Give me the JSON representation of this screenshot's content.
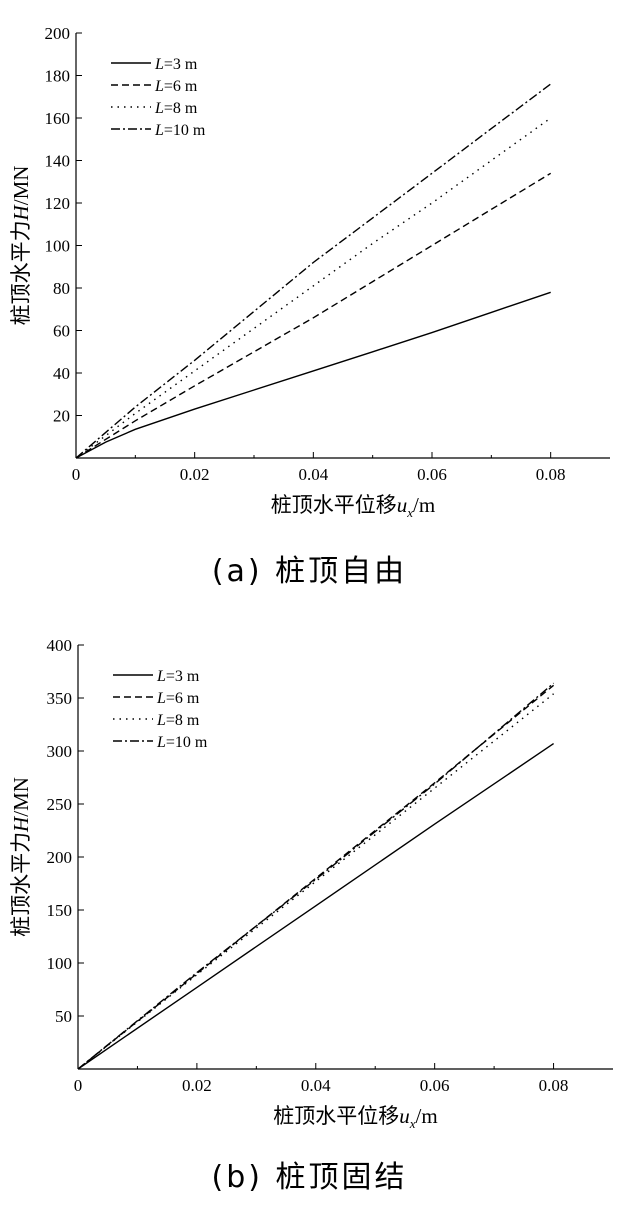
{
  "chart_data": [
    {
      "type": "line",
      "caption": "(a) 桩顶自由",
      "xlabel_main": "桩顶水平位移",
      "xlabel_var": "u",
      "xlabel_sub": "x",
      "xlabel_unit": "/m",
      "ylabel_main": "桩顶水平力",
      "ylabel_var": "H",
      "ylabel_unit": "/MN",
      "xlim": [
        0,
        0.09
      ],
      "ylim": [
        0,
        200
      ],
      "xticks": [
        0,
        0.02,
        0.04,
        0.06,
        0.08
      ],
      "xtick_labels": [
        "0",
        "0.02",
        "0.04",
        "0.06",
        "0.08"
      ],
      "yticks": [
        0,
        20,
        40,
        60,
        80,
        100,
        120,
        140,
        160,
        180,
        200
      ],
      "ytick_labels": [
        "",
        "20",
        "40",
        "60",
        "80",
        "100",
        "120",
        "140",
        "160",
        "180",
        "200"
      ],
      "x_origin_label": "0",
      "legend_position": "top-left",
      "series": [
        {
          "name_var": "L",
          "name_rest": "=3 m",
          "style": "solid",
          "x": [
            0,
            0.005,
            0.01,
            0.02,
            0.03,
            0.04,
            0.05,
            0.06,
            0.07,
            0.08
          ],
          "y": [
            0,
            7.5,
            13.5,
            23,
            32,
            41,
            50,
            59,
            68.5,
            78
          ]
        },
        {
          "name_var": "L",
          "name_rest": "=6 m",
          "style": "dashed",
          "x": [
            0,
            0.01,
            0.02,
            0.03,
            0.04,
            0.05,
            0.06,
            0.07,
            0.08
          ],
          "y": [
            0,
            17.5,
            34,
            50,
            66,
            83,
            100,
            117,
            134
          ]
        },
        {
          "name_var": "L",
          "name_rest": "=8 m",
          "style": "dotted",
          "x": [
            0,
            0.01,
            0.02,
            0.03,
            0.04,
            0.05,
            0.06,
            0.07,
            0.08
          ],
          "y": [
            0,
            21,
            41,
            61,
            81,
            101,
            120,
            140,
            160
          ]
        },
        {
          "name_var": "L",
          "name_rest": "=10 m",
          "style": "dashdot",
          "x": [
            0,
            0.01,
            0.02,
            0.03,
            0.04,
            0.05,
            0.06,
            0.07,
            0.08
          ],
          "y": [
            0,
            24,
            46,
            69,
            92,
            113,
            134,
            155,
            176
          ]
        }
      ]
    },
    {
      "type": "line",
      "caption": "(b) 桩顶固结",
      "xlabel_main": "桩顶水平位移",
      "xlabel_var": "u",
      "xlabel_sub": "x",
      "xlabel_unit": "/m",
      "ylabel_main": "桩顶水平力",
      "ylabel_var": "H",
      "ylabel_unit": "/MN",
      "xlim": [
        0,
        0.09
      ],
      "ylim": [
        0,
        400
      ],
      "xticks": [
        0,
        0.02,
        0.04,
        0.06,
        0.08
      ],
      "xtick_labels": [
        "0",
        "0.02",
        "0.04",
        "0.06",
        "0.08"
      ],
      "yticks": [
        0,
        50,
        100,
        150,
        200,
        250,
        300,
        350,
        400
      ],
      "ytick_labels": [
        "",
        "50",
        "100",
        "150",
        "200",
        "250",
        "300",
        "350",
        "400"
      ],
      "x_origin_label": "0",
      "legend_position": "top-left",
      "series": [
        {
          "name_var": "L",
          "name_rest": "=3 m",
          "style": "solid",
          "x": [
            0,
            0.02,
            0.04,
            0.06,
            0.08
          ],
          "y": [
            0,
            77,
            154,
            231,
            307
          ]
        },
        {
          "name_var": "L",
          "name_rest": "=6 m",
          "style": "dashed",
          "x": [
            0,
            0.02,
            0.04,
            0.06,
            0.08
          ],
          "y": [
            0,
            90,
            180,
            270,
            362
          ]
        },
        {
          "name_var": "L",
          "name_rest": "=8 m",
          "style": "dotted",
          "x": [
            0,
            0.02,
            0.04,
            0.06,
            0.08
          ],
          "y": [
            0,
            89,
            177,
            265,
            354
          ]
        },
        {
          "name_var": "L",
          "name_rest": "=10 m",
          "style": "dashdot",
          "x": [
            0,
            0.02,
            0.04,
            0.06,
            0.08
          ],
          "y": [
            0,
            91,
            179,
            269,
            364
          ]
        }
      ]
    }
  ]
}
